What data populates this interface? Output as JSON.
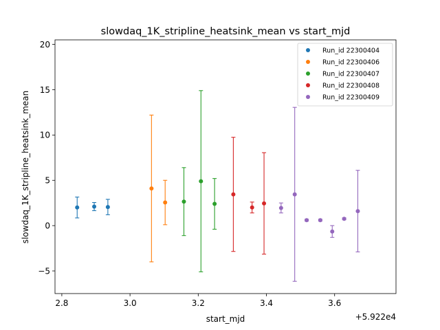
{
  "chart_data": {
    "type": "scatter",
    "title": "slowdaq_1K_stripline_heatsink_mean vs start_mjd",
    "xlabel": "start_mjd",
    "ylabel": "slowdaq_1K_stripline_heatsink_mean",
    "x_offset_label": "+5.922e4",
    "xlim": [
      2.78,
      3.78
    ],
    "ylim": [
      -7.5,
      20.5
    ],
    "xticks": [
      2.8,
      3.0,
      3.2,
      3.4,
      3.6
    ],
    "xtick_labels": [
      "2.8",
      "3.0",
      "3.2",
      "3.4",
      "3.6"
    ],
    "yticks": [
      -5,
      0,
      5,
      10,
      15,
      20
    ],
    "ytick_labels": [
      "−5",
      "0",
      "5",
      "10",
      "15",
      "20"
    ],
    "legend_position": "top-right",
    "series": [
      {
        "name": "Run_id 22300404",
        "color": "#1f77b4",
        "points": [
          {
            "x": 2.845,
            "y": 2.0,
            "err": 1.15
          },
          {
            "x": 2.895,
            "y": 2.1,
            "err": 0.45
          },
          {
            "x": 2.935,
            "y": 2.05,
            "err": 0.85
          }
        ]
      },
      {
        "name": "Run_id 22300406",
        "color": "#ff7f0e",
        "points": [
          {
            "x": 3.063,
            "y": 4.1,
            "err": 8.1
          },
          {
            "x": 3.103,
            "y": 2.55,
            "err": 2.45
          }
        ]
      },
      {
        "name": "Run_id 22300407",
        "color": "#2ca02c",
        "points": [
          {
            "x": 3.158,
            "y": 2.65,
            "err": 3.75
          },
          {
            "x": 3.208,
            "y": 4.9,
            "err": 10.0
          },
          {
            "x": 3.248,
            "y": 2.4,
            "err": 2.8
          }
        ]
      },
      {
        "name": "Run_id 22300408",
        "color": "#d62728",
        "points": [
          {
            "x": 3.303,
            "y": 3.45,
            "err": 6.3
          },
          {
            "x": 3.358,
            "y": 2.0,
            "err": 0.6
          },
          {
            "x": 3.393,
            "y": 2.45,
            "err": 5.6
          }
        ]
      },
      {
        "name": "Run_id 22300409",
        "color": "#9467bd",
        "points": [
          {
            "x": 3.443,
            "y": 1.95,
            "err": 0.55
          },
          {
            "x": 3.483,
            "y": 3.45,
            "err": 9.6
          },
          {
            "x": 3.518,
            "y": 0.6,
            "err": 0.1
          },
          {
            "x": 3.558,
            "y": 0.6,
            "err": 0.1
          },
          {
            "x": 3.593,
            "y": -0.65,
            "err": 0.65
          },
          {
            "x": 3.628,
            "y": 0.75,
            "err": 0.1
          },
          {
            "x": 3.668,
            "y": 1.6,
            "err": 4.5
          }
        ]
      }
    ]
  }
}
